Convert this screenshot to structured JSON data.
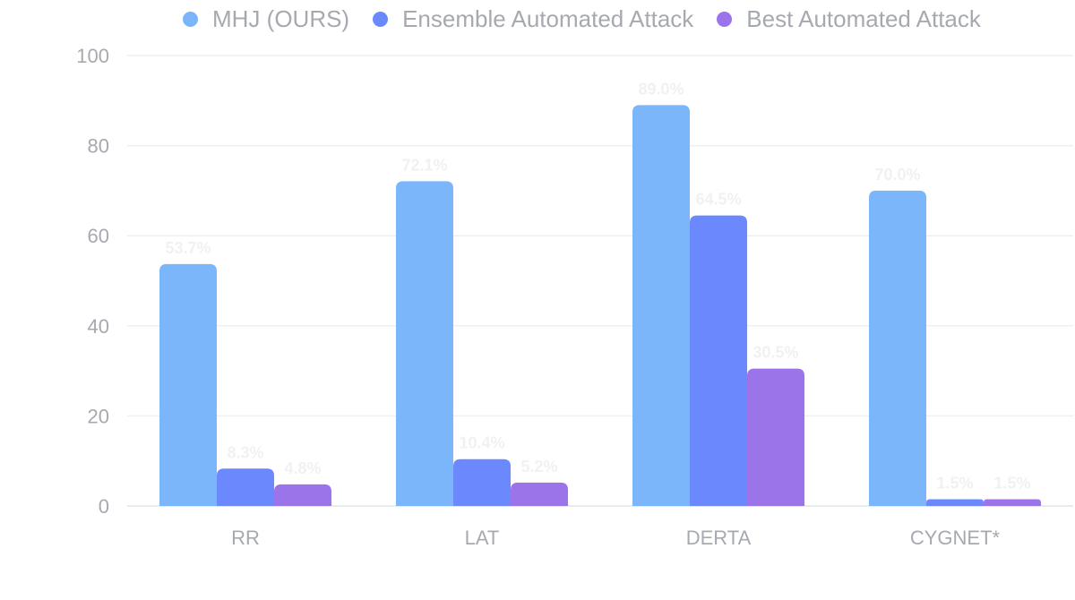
{
  "chart_data": {
    "type": "bar",
    "title": "",
    "xlabel": "",
    "ylabel": "",
    "categories": [
      "RR",
      "LAT",
      "DERTA",
      "CYGNET*"
    ],
    "series": [
      {
        "name": "MHJ (OURS)",
        "color": "#7ab6f9",
        "values": [
          53.7,
          72.1,
          89.0,
          70.0
        ]
      },
      {
        "name": "Ensemble Automated Attack",
        "color": "#6c88fd",
        "values": [
          8.3,
          10.4,
          64.5,
          1.5
        ]
      },
      {
        "name": "Best Automated Attack",
        "color": "#9b74ea",
        "values": [
          4.8,
          5.2,
          30.5,
          1.5
        ]
      }
    ],
    "ylim": [
      0,
      100
    ],
    "yticks": [
      0,
      20,
      40,
      60,
      80,
      100
    ],
    "grid": true,
    "legend_position": "top"
  }
}
